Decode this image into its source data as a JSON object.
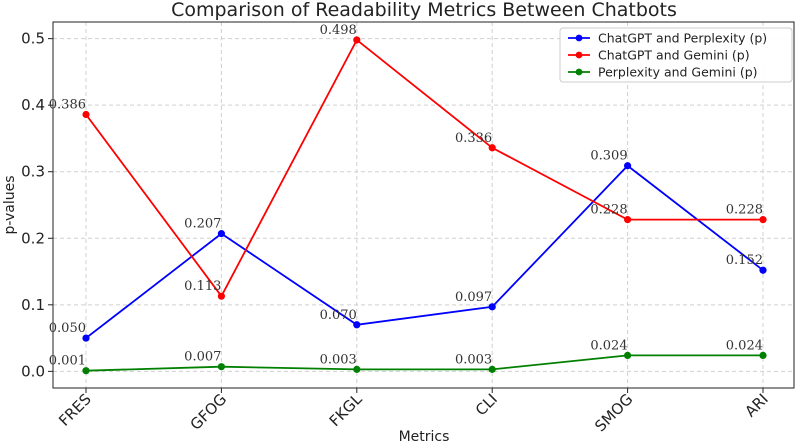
{
  "chart_data": {
    "type": "line",
    "title": "Comparison of Readability Metrics Between Chatbots",
    "xlabel": "Metrics",
    "ylabel": "p-values",
    "categories": [
      "FRES",
      "GFOG",
      "FKGL",
      "CLI",
      "SMOG",
      "ARI"
    ],
    "ylim": [
      -0.025,
      0.525
    ],
    "yticks": [
      0.0,
      0.1,
      0.2,
      0.3,
      0.4,
      0.5
    ],
    "ytick_labels": [
      "0.0",
      "0.1",
      "0.2",
      "0.3",
      "0.4",
      "0.5"
    ],
    "grid": true,
    "legend_position": "top-right",
    "series": [
      {
        "name": "ChatGPT and Perplexity (p)",
        "color": "#0000ff",
        "values": [
          0.05,
          0.207,
          0.07,
          0.097,
          0.309,
          0.152
        ],
        "labels": [
          "0.050",
          "0.207",
          "0.070",
          "0.097",
          "0.309",
          "0.152"
        ]
      },
      {
        "name": "ChatGPT and Gemini (p)",
        "color": "#ff0000",
        "values": [
          0.386,
          0.113,
          0.498,
          0.336,
          0.228,
          0.228
        ],
        "labels": [
          "0.386",
          "0.113",
          "0.498",
          "0.336",
          "0.228",
          "0.228"
        ]
      },
      {
        "name": "Perplexity and Gemini (p)",
        "color": "#008000",
        "values": [
          0.001,
          0.007,
          0.003,
          0.003,
          0.024,
          0.024
        ],
        "labels": [
          "0.001",
          "0.007",
          "0.003",
          "0.003",
          "0.024",
          "0.024"
        ]
      }
    ]
  }
}
